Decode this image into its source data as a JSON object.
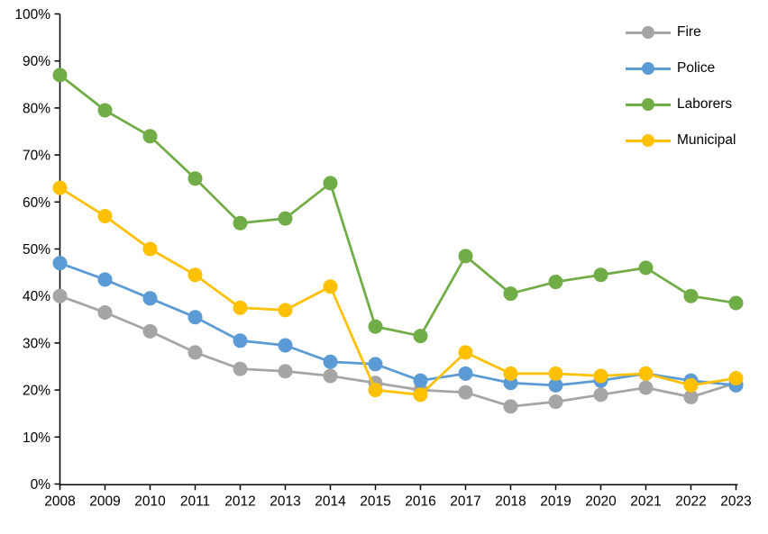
{
  "chart_data": {
    "type": "line",
    "title": "",
    "xlabel": "",
    "ylabel": "",
    "grid": false,
    "legend_position": "top-right",
    "ylim": [
      0,
      100
    ],
    "ytick_step": 10,
    "ytick_labels": [
      "0%",
      "10%",
      "20%",
      "30%",
      "40%",
      "50%",
      "60%",
      "70%",
      "80%",
      "90%",
      "100%"
    ],
    "categories": [
      "2008",
      "2009",
      "2010",
      "2011",
      "2012",
      "2013",
      "2014",
      "2015",
      "2016",
      "2017",
      "2018",
      "2019",
      "2020",
      "2021",
      "2022",
      "2023"
    ],
    "series": [
      {
        "name": "Fire",
        "color": "#A5A5A5",
        "values": [
          40,
          36.5,
          32.5,
          28,
          24.5,
          24,
          23,
          21.5,
          20,
          19.5,
          16.5,
          17.5,
          19,
          20.5,
          18.5,
          21.5
        ]
      },
      {
        "name": "Police",
        "color": "#5B9BD5",
        "values": [
          47,
          43.5,
          39.5,
          35.5,
          30.5,
          29.5,
          26,
          25.5,
          22,
          23.5,
          21.5,
          21,
          22,
          23.5,
          22,
          21
        ]
      },
      {
        "name": "Laborers",
        "color": "#70AD47",
        "values": [
          87,
          79.5,
          74,
          65,
          55.5,
          56.5,
          64,
          33.5,
          31.5,
          48.5,
          40.5,
          43,
          44.5,
          46,
          40,
          38.5
        ]
      },
      {
        "name": "Municipal",
        "color": "#FFC000",
        "values": [
          63,
          57,
          50,
          44.5,
          37.5,
          37,
          42,
          20,
          19,
          28,
          23.5,
          23.5,
          23,
          23.5,
          21,
          22.5
        ]
      }
    ],
    "axis_color": "#000000",
    "marker_radius": 8,
    "line_width": 2.75
  }
}
